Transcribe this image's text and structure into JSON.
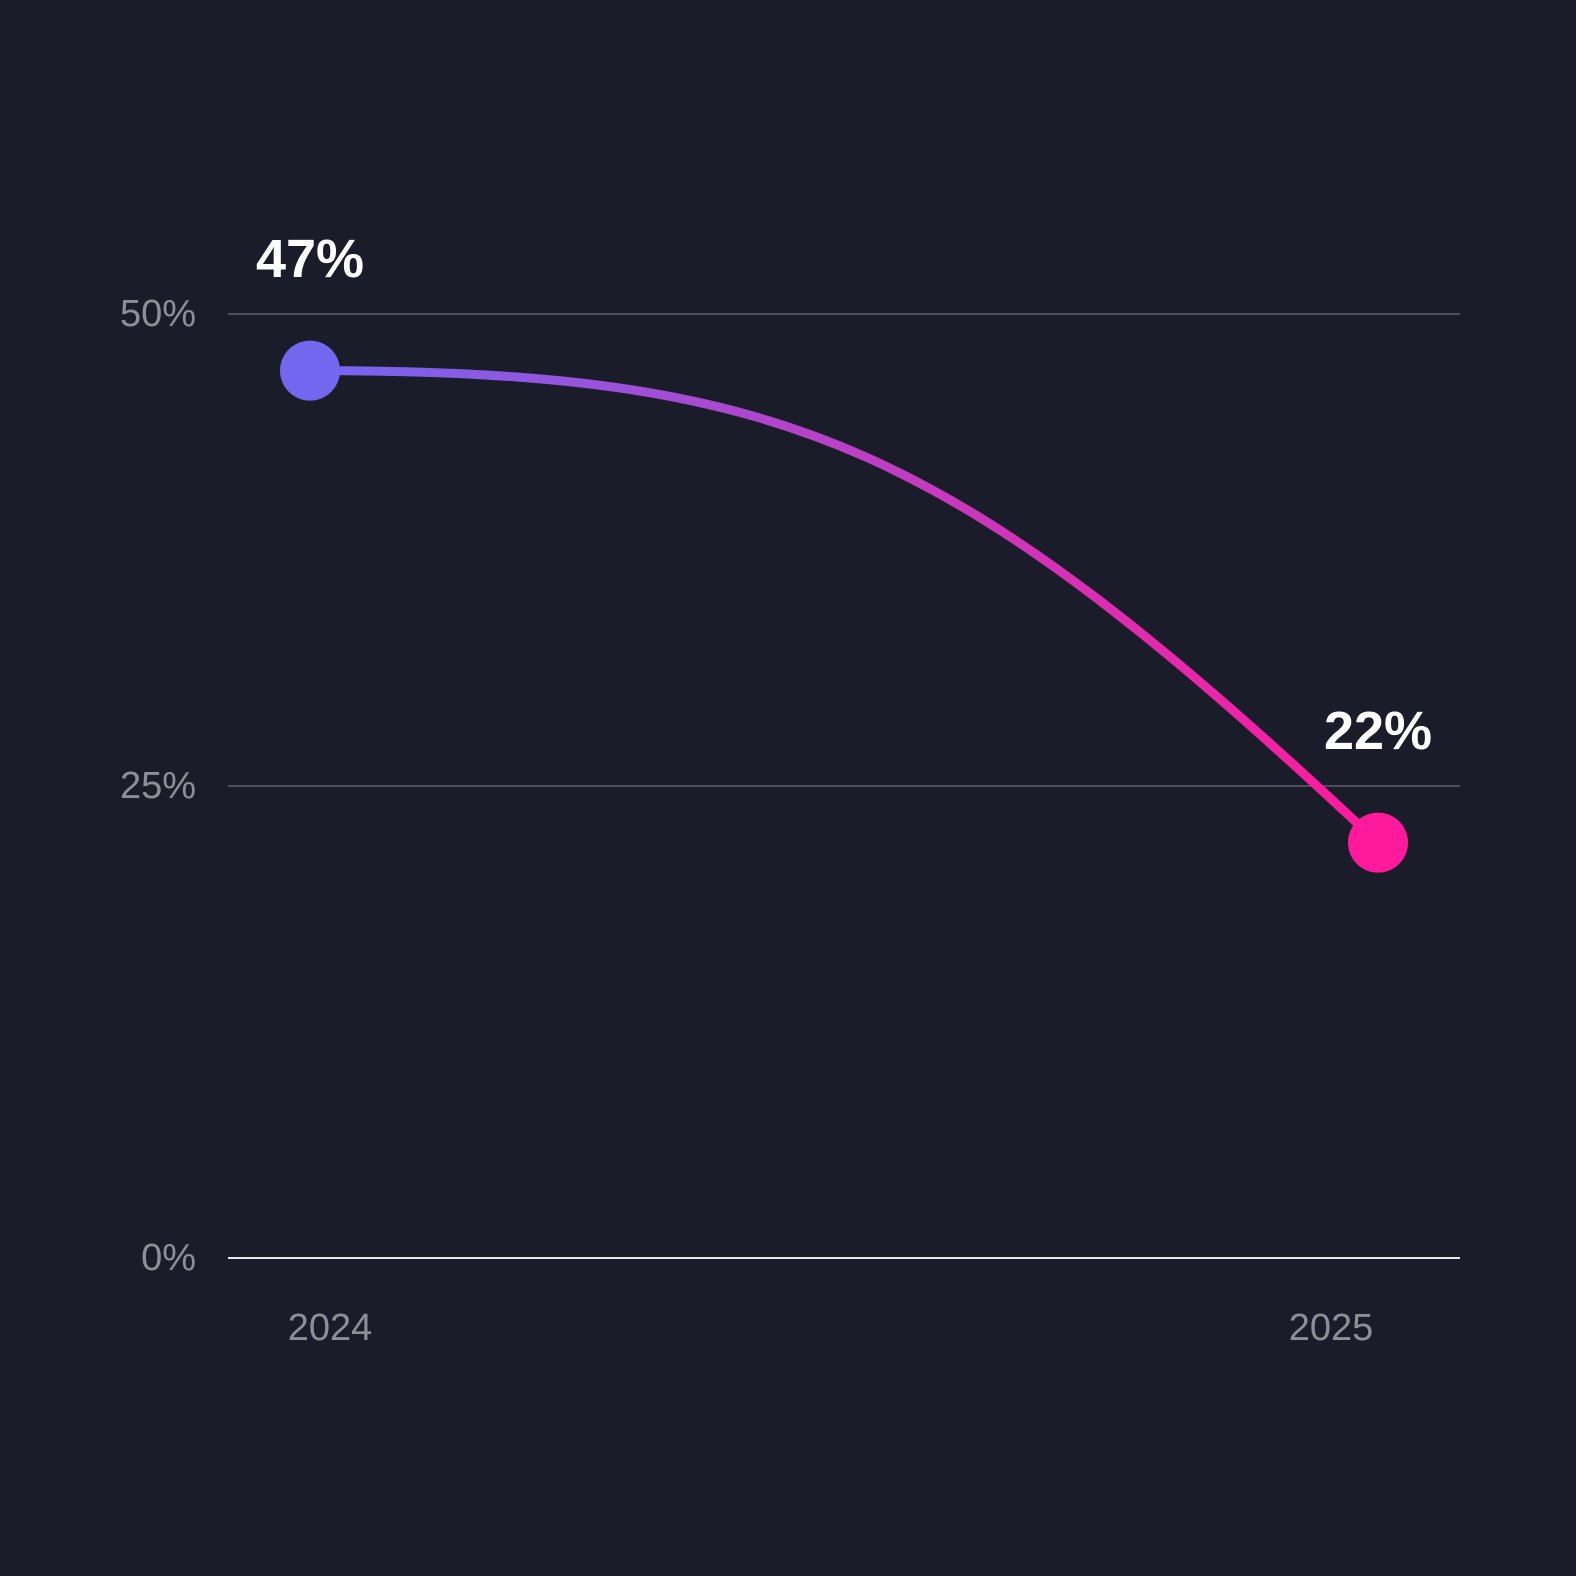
{
  "chart_data": {
    "type": "line",
    "categories": [
      "2024",
      "2025"
    ],
    "series": [
      {
        "values": [
          47,
          22
        ],
        "value_labels": [
          "47%",
          "22%"
        ],
        "colors": [
          "#7367f0",
          "#ff1a9c"
        ]
      }
    ],
    "ylim": [
      0,
      50
    ],
    "yticks": [
      {
        "value": 0,
        "label": "0%"
      },
      {
        "value": 25,
        "label": "25%"
      },
      {
        "value": 50,
        "label": "50%"
      }
    ],
    "grid": true
  }
}
